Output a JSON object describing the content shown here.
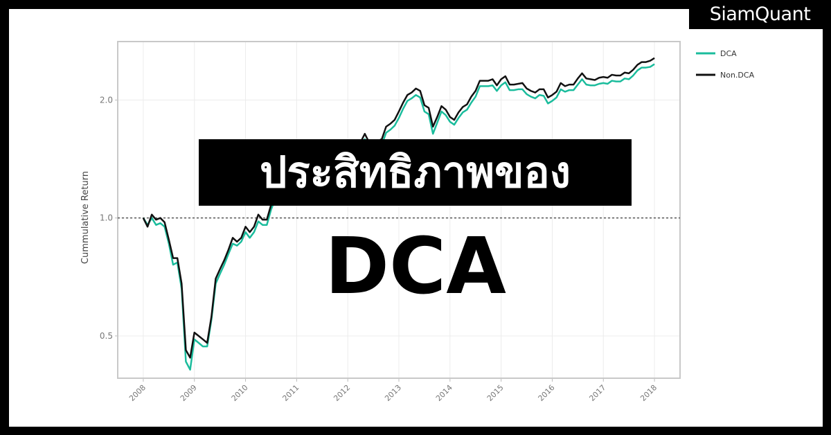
{
  "brand": "SiamQuant",
  "headline": "ประสิทธิภาพของ",
  "subheadline": "DCA",
  "chart_data": {
    "type": "line",
    "title": "",
    "xlabel": "",
    "ylabel": "Cummulative Return",
    "y_scale": "log",
    "ylim": [
      0.39,
      2.82
    ],
    "xlim": [
      2007.5,
      2018.5
    ],
    "grid": true,
    "legend_position": "right",
    "reference_line": {
      "y": 1.0,
      "style": "dotted"
    },
    "x_ticks": [
      "2008",
      "2009",
      "2010",
      "2011",
      "2012",
      "2013",
      "2014",
      "2015",
      "2016",
      "2017",
      "2018"
    ],
    "y_ticks": [
      "0.5",
      "1.0",
      "2.0"
    ],
    "y_tick_values": [
      0.5,
      1.0,
      2.0
    ],
    "x_frequency": "monthly",
    "x": [
      "2008-01",
      "2008-02",
      "2008-03",
      "2008-04",
      "2008-05",
      "2008-06",
      "2008-07",
      "2008-08",
      "2008-09",
      "2008-10",
      "2008-11",
      "2008-12",
      "2009-01",
      "2009-02",
      "2009-03",
      "2009-04",
      "2009-05",
      "2009-06",
      "2009-07",
      "2009-08",
      "2009-09",
      "2009-10",
      "2009-11",
      "2009-12",
      "2010-01",
      "2010-02",
      "2010-03",
      "2010-04",
      "2010-05",
      "2010-06",
      "2010-07",
      "2010-08",
      "2010-09",
      "2010-10",
      "2010-11",
      "2010-12",
      "2011-01",
      "2011-02",
      "2011-03",
      "2011-04",
      "2011-05",
      "2011-06",
      "2011-07",
      "2011-08",
      "2011-09",
      "2011-10",
      "2011-11",
      "2011-12",
      "2012-01",
      "2012-02",
      "2012-03",
      "2012-04",
      "2012-05",
      "2012-06",
      "2012-07",
      "2012-08",
      "2012-09",
      "2012-10",
      "2012-11",
      "2012-12",
      "2013-01",
      "2013-02",
      "2013-03",
      "2013-04",
      "2013-05",
      "2013-06",
      "2013-07",
      "2013-08",
      "2013-09",
      "2013-10",
      "2013-11",
      "2013-12",
      "2014-01",
      "2014-02",
      "2014-03",
      "2014-04",
      "2014-05",
      "2014-06",
      "2014-07",
      "2014-08",
      "2014-09",
      "2014-10",
      "2014-11",
      "2014-12",
      "2015-01",
      "2015-02",
      "2015-03",
      "2015-04",
      "2015-05",
      "2015-06",
      "2015-07",
      "2015-08",
      "2015-09",
      "2015-10",
      "2015-11",
      "2015-12",
      "2016-01",
      "2016-02",
      "2016-03",
      "2016-04",
      "2016-05",
      "2016-06",
      "2016-07",
      "2016-08",
      "2016-09",
      "2016-10",
      "2016-11",
      "2016-12",
      "2017-01",
      "2017-02",
      "2017-03",
      "2017-04",
      "2017-05",
      "2017-06",
      "2017-07",
      "2017-08",
      "2017-09",
      "2017-10",
      "2017-11",
      "2017-12",
      "2018-01"
    ],
    "series": [
      {
        "name": "DCA",
        "color": "#1abc9c",
        "values": [
          1.0,
          0.96,
          1.0,
          0.96,
          0.97,
          0.95,
          0.86,
          0.76,
          0.77,
          0.66,
          0.43,
          0.41,
          0.49,
          0.48,
          0.47,
          0.47,
          0.55,
          0.68,
          0.72,
          0.76,
          0.81,
          0.86,
          0.85,
          0.87,
          0.92,
          0.89,
          0.92,
          0.98,
          0.96,
          0.96,
          1.05,
          1.12,
          1.17,
          1.22,
          1.26,
          1.29,
          1.32,
          1.34,
          1.33,
          1.36,
          1.35,
          1.32,
          1.29,
          1.18,
          1.14,
          1.23,
          1.21,
          1.24,
          1.34,
          1.41,
          1.46,
          1.51,
          1.59,
          1.51,
          1.51,
          1.52,
          1.54,
          1.65,
          1.68,
          1.72,
          1.8,
          1.9,
          1.99,
          2.02,
          2.06,
          2.03,
          1.87,
          1.84,
          1.64,
          1.75,
          1.87,
          1.83,
          1.76,
          1.73,
          1.8,
          1.86,
          1.89,
          1.97,
          2.04,
          2.17,
          2.17,
          2.17,
          2.18,
          2.11,
          2.18,
          2.22,
          2.12,
          2.12,
          2.13,
          2.13,
          2.07,
          2.04,
          2.02,
          2.06,
          2.05,
          1.96,
          1.99,
          2.03,
          2.13,
          2.1,
          2.12,
          2.12,
          2.19,
          2.26,
          2.19,
          2.18,
          2.18,
          2.2,
          2.21,
          2.2,
          2.24,
          2.23,
          2.23,
          2.27,
          2.26,
          2.31,
          2.38,
          2.42,
          2.42,
          2.43,
          2.47
        ]
      },
      {
        "name": "Non.DCA",
        "color": "#111111",
        "values": [
          1.0,
          0.95,
          1.02,
          0.99,
          1.0,
          0.975,
          0.88,
          0.79,
          0.79,
          0.68,
          0.46,
          0.44,
          0.51,
          0.5,
          0.49,
          0.48,
          0.56,
          0.7,
          0.74,
          0.78,
          0.83,
          0.89,
          0.87,
          0.89,
          0.95,
          0.92,
          0.95,
          1.02,
          0.99,
          0.99,
          1.08,
          1.15,
          1.2,
          1.26,
          1.3,
          1.33,
          1.36,
          1.38,
          1.37,
          1.4,
          1.39,
          1.36,
          1.33,
          1.22,
          1.18,
          1.27,
          1.25,
          1.28,
          1.38,
          1.45,
          1.5,
          1.56,
          1.64,
          1.56,
          1.56,
          1.57,
          1.59,
          1.71,
          1.74,
          1.78,
          1.87,
          1.97,
          2.06,
          2.09,
          2.14,
          2.11,
          1.94,
          1.91,
          1.71,
          1.81,
          1.93,
          1.89,
          1.81,
          1.78,
          1.86,
          1.92,
          1.95,
          2.04,
          2.11,
          2.24,
          2.24,
          2.24,
          2.26,
          2.18,
          2.26,
          2.3,
          2.19,
          2.19,
          2.2,
          2.21,
          2.14,
          2.11,
          2.09,
          2.13,
          2.13,
          2.03,
          2.06,
          2.1,
          2.21,
          2.17,
          2.19,
          2.19,
          2.27,
          2.34,
          2.27,
          2.26,
          2.25,
          2.28,
          2.29,
          2.28,
          2.32,
          2.31,
          2.31,
          2.35,
          2.34,
          2.39,
          2.46,
          2.5,
          2.5,
          2.52,
          2.56
        ]
      }
    ]
  }
}
